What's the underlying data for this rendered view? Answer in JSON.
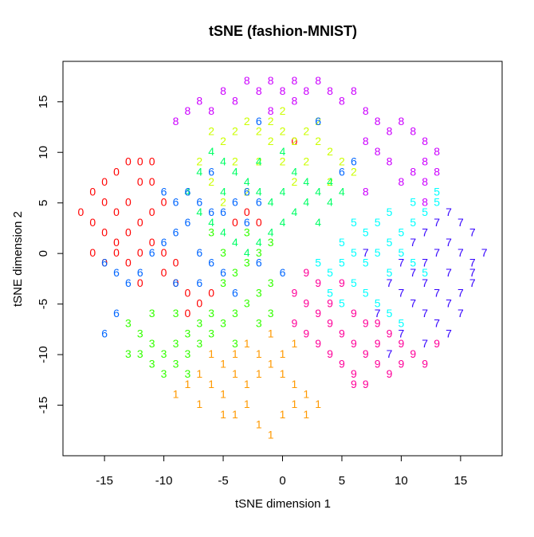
{
  "chart_data": {
    "type": "scatter",
    "title": "tSNE (fashion-MNIST)",
    "xlabel": "tSNE dimension 1",
    "ylabel": "tSNE dimension 2",
    "xlim": [
      -18.5,
      18.5
    ],
    "ylim": [
      -20,
      19
    ],
    "xticks": [
      -15,
      -10,
      -5,
      0,
      5,
      10,
      15
    ],
    "yticks": [
      -15,
      -10,
      -5,
      0,
      5,
      10,
      15
    ],
    "xtick_labels": [
      "-15",
      "-10",
      "-5",
      "0",
      "5",
      "10",
      "15"
    ],
    "ytick_labels": [
      "-15",
      "-10",
      "-5",
      "0",
      "5",
      "10",
      "15"
    ],
    "grid": false,
    "legend": "none",
    "marker": "digit glyph of class label",
    "series": [
      {
        "label": "0",
        "color": "#ff0000",
        "points": [
          [
            -16,
            6
          ],
          [
            -15,
            5
          ],
          [
            -14,
            4
          ],
          [
            -13,
            5
          ],
          [
            -12,
            7
          ],
          [
            -16,
            3
          ],
          [
            -15,
            2
          ],
          [
            -14,
            1
          ],
          [
            -13,
            2
          ],
          [
            -12,
            3
          ],
          [
            -16,
            0
          ],
          [
            -15,
            -1
          ],
          [
            -14,
            0
          ],
          [
            -13,
            -1
          ],
          [
            -12,
            0
          ],
          [
            -11,
            1
          ],
          [
            -10,
            0
          ],
          [
            -9,
            -1
          ],
          [
            -11,
            4
          ],
          [
            -10,
            5
          ],
          [
            -13,
            9
          ],
          [
            -12,
            9
          ],
          [
            -11,
            7
          ],
          [
            -17,
            4
          ],
          [
            -8,
            -4
          ],
          [
            -7,
            -5
          ],
          [
            -6,
            -4
          ],
          [
            -8,
            -6
          ],
          [
            -4,
            3
          ],
          [
            -3,
            4
          ],
          [
            -2,
            3
          ],
          [
            -12,
            -3
          ],
          [
            -10,
            -2
          ],
          [
            -15,
            7
          ],
          [
            -14,
            8
          ],
          [
            -11,
            9
          ],
          [
            -9,
            -3
          ],
          [
            1,
            11
          ]
        ]
      },
      {
        "label": "1",
        "color": "#ff9900",
        "points": [
          [
            -8,
            -13
          ],
          [
            -7,
            -12
          ],
          [
            -6,
            -13
          ],
          [
            -5,
            -11
          ],
          [
            -4,
            -12
          ],
          [
            -3,
            -13
          ],
          [
            -2,
            -12
          ],
          [
            -1,
            -11
          ],
          [
            0,
            -12
          ],
          [
            1,
            -13
          ],
          [
            2,
            -14
          ],
          [
            3,
            -15
          ],
          [
            -9,
            -14
          ],
          [
            -7,
            -15
          ],
          [
            -5,
            -14
          ],
          [
            -4,
            -16
          ],
          [
            -3,
            -15
          ],
          [
            -2,
            -17
          ],
          [
            -1,
            -18
          ],
          [
            0,
            -16
          ],
          [
            1,
            -15
          ],
          [
            2,
            -16
          ],
          [
            -6,
            -10
          ],
          [
            -4,
            -10
          ],
          [
            -2,
            -10
          ],
          [
            0,
            -10
          ],
          [
            1,
            -9
          ],
          [
            -1,
            -8
          ],
          [
            -3,
            -9
          ],
          [
            -5,
            -16
          ]
        ]
      },
      {
        "label": "2",
        "color": "#ccff00",
        "points": [
          [
            -6,
            12
          ],
          [
            -5,
            11
          ],
          [
            -4,
            12
          ],
          [
            -3,
            13
          ],
          [
            -2,
            12
          ],
          [
            -1,
            11
          ],
          [
            0,
            12
          ],
          [
            1,
            11
          ],
          [
            2,
            12
          ],
          [
            3,
            11
          ],
          [
            4,
            10
          ],
          [
            5,
            9
          ],
          [
            6,
            8
          ],
          [
            -4,
            9
          ],
          [
            -2,
            9
          ],
          [
            0,
            9
          ],
          [
            2,
            9
          ],
          [
            4,
            7
          ],
          [
            -7,
            9
          ],
          [
            -6,
            7
          ],
          [
            0,
            14
          ],
          [
            -1,
            13
          ],
          [
            3,
            13
          ],
          [
            -5,
            5
          ],
          [
            -3,
            6
          ],
          [
            1,
            7
          ]
        ]
      },
      {
        "label": "3",
        "color": "#33ff00",
        "points": [
          [
            -13,
            -7
          ],
          [
            -12,
            -8
          ],
          [
            -11,
            -9
          ],
          [
            -10,
            -10
          ],
          [
            -9,
            -9
          ],
          [
            -8,
            -8
          ],
          [
            -7,
            -7
          ],
          [
            -6,
            -8
          ],
          [
            -5,
            -7
          ],
          [
            -4,
            -6
          ],
          [
            -3,
            -5
          ],
          [
            -2,
            -4
          ],
          [
            -1,
            -3
          ],
          [
            -12,
            -10
          ],
          [
            -11,
            -11
          ],
          [
            -10,
            -12
          ],
          [
            -9,
            -11
          ],
          [
            -8,
            -10
          ],
          [
            -7,
            -9
          ],
          [
            -6,
            -6
          ],
          [
            -5,
            -3
          ],
          [
            -4,
            -2
          ],
          [
            -3,
            -1
          ],
          [
            -2,
            0
          ],
          [
            -1,
            1
          ],
          [
            -1,
            -6
          ],
          [
            -2,
            -7
          ],
          [
            -4,
            -9
          ],
          [
            -13,
            -10
          ],
          [
            -11,
            -6
          ],
          [
            -9,
            -6
          ],
          [
            -5,
            0
          ],
          [
            -6,
            2
          ],
          [
            -3,
            2
          ],
          [
            -8,
            -12
          ]
        ]
      },
      {
        "label": "4",
        "color": "#00ff66",
        "points": [
          [
            -7,
            4
          ],
          [
            -6,
            3
          ],
          [
            -5,
            2
          ],
          [
            -4,
            1
          ],
          [
            -3,
            0
          ],
          [
            -2,
            1
          ],
          [
            -1,
            2
          ],
          [
            0,
            3
          ],
          [
            1,
            4
          ],
          [
            2,
            5
          ],
          [
            3,
            6
          ],
          [
            4,
            7
          ],
          [
            -6,
            10
          ],
          [
            -5,
            9
          ],
          [
            -4,
            8
          ],
          [
            -3,
            7
          ],
          [
            -2,
            6
          ],
          [
            -1,
            5
          ],
          [
            0,
            6
          ],
          [
            1,
            8
          ],
          [
            2,
            7
          ],
          [
            -8,
            6
          ],
          [
            -7,
            8
          ],
          [
            -5,
            6
          ],
          [
            4,
            5
          ],
          [
            5,
            6
          ],
          [
            3,
            3
          ],
          [
            -2,
            9
          ],
          [
            0,
            10
          ]
        ]
      },
      {
        "label": "5",
        "color": "#00ffff",
        "points": [
          [
            3,
            -1
          ],
          [
            4,
            -2
          ],
          [
            5,
            -1
          ],
          [
            6,
            0
          ],
          [
            7,
            -1
          ],
          [
            8,
            0
          ],
          [
            9,
            1
          ],
          [
            10,
            2
          ],
          [
            11,
            3
          ],
          [
            12,
            4
          ],
          [
            13,
            5
          ],
          [
            7,
            2
          ],
          [
            8,
            3
          ],
          [
            9,
            4
          ],
          [
            6,
            -3
          ],
          [
            7,
            -4
          ],
          [
            8,
            -5
          ],
          [
            9,
            -6
          ],
          [
            10,
            -7
          ],
          [
            4,
            -4
          ],
          [
            5,
            -5
          ],
          [
            10,
            0
          ],
          [
            11,
            -1
          ],
          [
            12,
            -2
          ],
          [
            9,
            -2
          ],
          [
            13,
            6
          ],
          [
            11,
            5
          ],
          [
            6,
            3
          ],
          [
            5,
            1
          ]
        ]
      },
      {
        "label": "6",
        "color": "#0066ff",
        "points": [
          [
            -10,
            6
          ],
          [
            -9,
            5
          ],
          [
            -8,
            6
          ],
          [
            -7,
            5
          ],
          [
            -6,
            4
          ],
          [
            -5,
            4
          ],
          [
            -4,
            5
          ],
          [
            -3,
            6
          ],
          [
            -2,
            5
          ],
          [
            -11,
            0
          ],
          [
            -10,
            1
          ],
          [
            -9,
            2
          ],
          [
            -8,
            3
          ],
          [
            -7,
            0
          ],
          [
            -6,
            -1
          ],
          [
            -5,
            -2
          ],
          [
            -12,
            -2
          ],
          [
            -13,
            -3
          ],
          [
            -15,
            -1
          ],
          [
            -14,
            -6
          ],
          [
            -15,
            -8
          ],
          [
            -2,
            13
          ],
          [
            3,
            13
          ],
          [
            6,
            9
          ],
          [
            5,
            8
          ],
          [
            -9,
            -3
          ],
          [
            -7,
            -3
          ],
          [
            -4,
            -4
          ],
          [
            -3,
            3
          ],
          [
            -2,
            -1
          ],
          [
            0,
            -2
          ],
          [
            -14,
            -2
          ],
          [
            -6,
            8
          ]
        ]
      },
      {
        "label": "7",
        "color": "#3300ff",
        "points": [
          [
            9,
            -3
          ],
          [
            10,
            -4
          ],
          [
            11,
            -5
          ],
          [
            12,
            -6
          ],
          [
            13,
            -7
          ],
          [
            14,
            -8
          ],
          [
            10,
            -1
          ],
          [
            11,
            -2
          ],
          [
            12,
            -3
          ],
          [
            13,
            -4
          ],
          [
            14,
            -5
          ],
          [
            15,
            -6
          ],
          [
            11,
            1
          ],
          [
            12,
            2
          ],
          [
            13,
            3
          ],
          [
            14,
            4
          ],
          [
            15,
            3
          ],
          [
            16,
            2
          ],
          [
            13,
            0
          ],
          [
            14,
            1
          ],
          [
            15,
            0
          ],
          [
            16,
            -1
          ],
          [
            17,
            0
          ],
          [
            12,
            -1
          ],
          [
            14,
            -2
          ],
          [
            16,
            -3
          ],
          [
            15,
            -4
          ],
          [
            10,
            -8
          ],
          [
            8,
            -6
          ],
          [
            9,
            -10
          ],
          [
            12,
            -9
          ],
          [
            7,
            0
          ],
          [
            16,
            -2
          ]
        ]
      },
      {
        "label": "8",
        "color": "#cc00ff",
        "points": [
          [
            -8,
            14
          ],
          [
            -7,
            15
          ],
          [
            -6,
            14
          ],
          [
            -5,
            16
          ],
          [
            -4,
            15
          ],
          [
            -3,
            17
          ],
          [
            -2,
            16
          ],
          [
            -1,
            17
          ],
          [
            0,
            16
          ],
          [
            1,
            15
          ],
          [
            2,
            16
          ],
          [
            3,
            17
          ],
          [
            4,
            16
          ],
          [
            5,
            15
          ],
          [
            6,
            16
          ],
          [
            7,
            14
          ],
          [
            8,
            13
          ],
          [
            9,
            12
          ],
          [
            10,
            13
          ],
          [
            11,
            12
          ],
          [
            12,
            11
          ],
          [
            13,
            10
          ],
          [
            12,
            9
          ],
          [
            11,
            8
          ],
          [
            10,
            7
          ],
          [
            9,
            9
          ],
          [
            8,
            10
          ],
          [
            7,
            11
          ],
          [
            13,
            8
          ],
          [
            12,
            7
          ],
          [
            -9,
            13
          ],
          [
            1,
            17
          ],
          [
            -1,
            14
          ],
          [
            7,
            6
          ],
          [
            12,
            5
          ]
        ]
      },
      {
        "label": "9",
        "color": "#ff0099",
        "points": [
          [
            1,
            -4
          ],
          [
            2,
            -5
          ],
          [
            3,
            -6
          ],
          [
            4,
            -7
          ],
          [
            5,
            -8
          ],
          [
            6,
            -9
          ],
          [
            7,
            -10
          ],
          [
            8,
            -11
          ],
          [
            9,
            -12
          ],
          [
            1,
            -7
          ],
          [
            2,
            -8
          ],
          [
            3,
            -9
          ],
          [
            4,
            -10
          ],
          [
            5,
            -11
          ],
          [
            6,
            -12
          ],
          [
            7,
            -13
          ],
          [
            8,
            -9
          ],
          [
            9,
            -8
          ],
          [
            10,
            -9
          ],
          [
            11,
            -10
          ],
          [
            12,
            -11
          ],
          [
            4,
            -5
          ],
          [
            6,
            -6
          ],
          [
            8,
            -7
          ],
          [
            3,
            -3
          ],
          [
            5,
            -3
          ],
          [
            2,
            -2
          ],
          [
            10,
            -11
          ],
          [
            13,
            -9
          ],
          [
            7,
            -7
          ],
          [
            6,
            -13
          ]
        ]
      }
    ]
  }
}
